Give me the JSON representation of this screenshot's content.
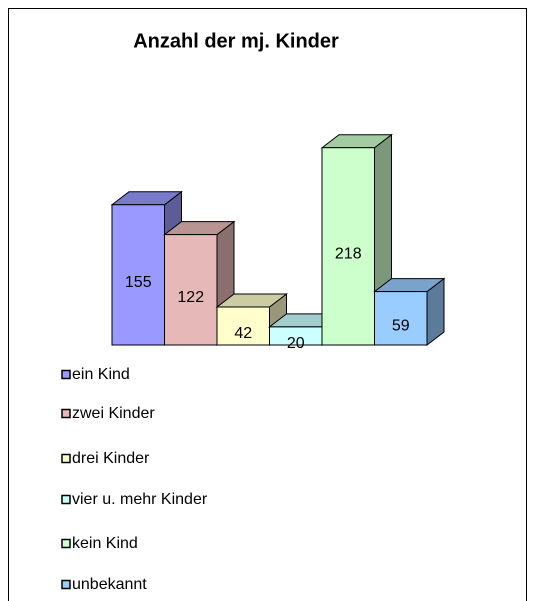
{
  "chart_data": {
    "type": "bar3d",
    "title": "Anzahl der mj. Kinder",
    "categories": [
      "ein Kind",
      "zwei Kinder",
      "drei Kinder",
      "vier u. mehr Kinder",
      "kein Kind",
      "unbekannt"
    ],
    "values": [
      155,
      122,
      42,
      20,
      218,
      59
    ],
    "colors": [
      "#9999ff",
      "#e6b9b8",
      "#ffffcc",
      "#ccffff",
      "#ccffcc",
      "#99ccff"
    ]
  }
}
